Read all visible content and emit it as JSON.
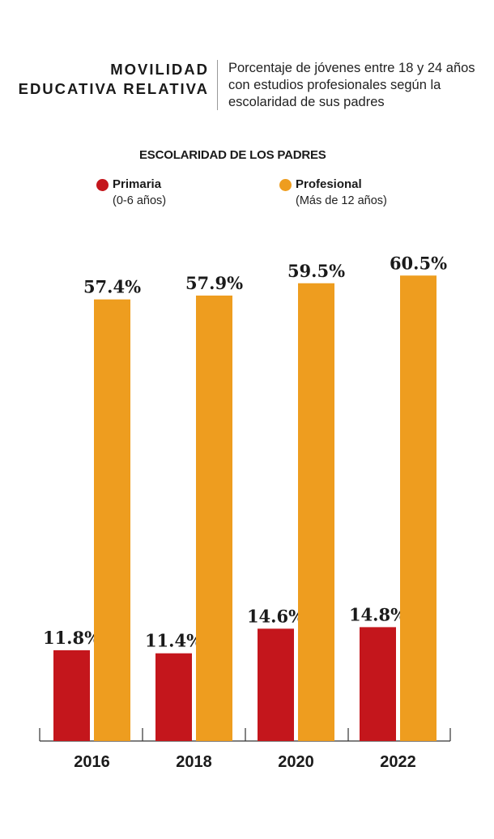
{
  "header": {
    "title_line1": "MOVILIDAD",
    "title_line2": "EDUCATIVA RELATIVA",
    "subtitle": "Porcentaje de jóvenes entre 18 y 24 años con estudios profesionales según la escolaridad de sus padres"
  },
  "legend": {
    "title": "ESCOLARIDAD DE LOS PADRES",
    "items": [
      {
        "name": "Primaria",
        "sub": "(0-6 años)",
        "color": "#c4161c"
      },
      {
        "name": "Profesional",
        "sub": "(Más de 12 años)",
        "color": "#ee9d1f"
      }
    ]
  },
  "chart_data": {
    "type": "bar",
    "categories": [
      "2016",
      "2018",
      "2020",
      "2022"
    ],
    "series": [
      {
        "name": "Primaria",
        "values": [
          11.8,
          11.4,
          14.6,
          14.8
        ],
        "labels": [
          "11.8%",
          "11.4%",
          "14.6%",
          "14.8%"
        ],
        "color": "#c4161c"
      },
      {
        "name": "Profesional",
        "values": [
          57.4,
          57.9,
          59.5,
          60.5
        ],
        "labels": [
          "57.4%",
          "57.9%",
          "59.5%",
          "60.5%"
        ],
        "color": "#ee9d1f"
      }
    ],
    "ylim": [
      0,
      62
    ],
    "grid": false,
    "legend_position": "top"
  }
}
